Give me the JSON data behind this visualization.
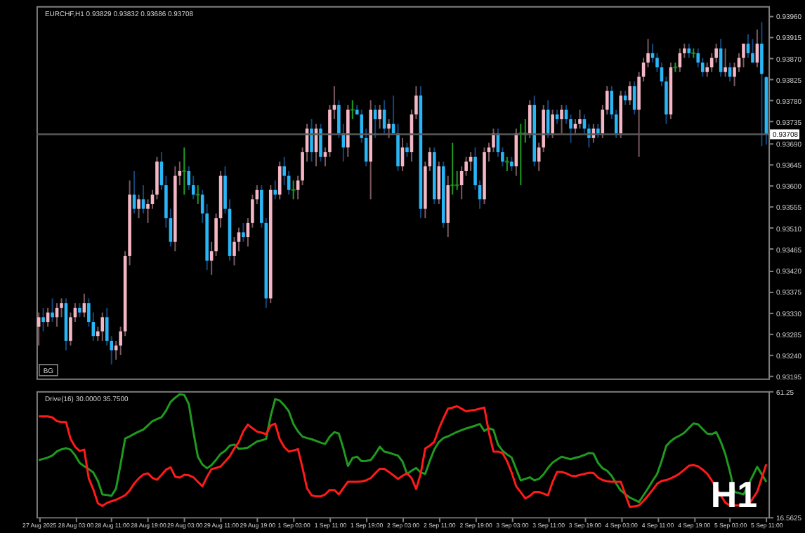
{
  "chart_data": [
    {
      "type": "candlestick",
      "title": "EURCHF,H1 0.93829 0.93832 0.93686 0.93708",
      "ylim": [
        0.9319,
        0.9398
      ],
      "yticks": [
        0.93195,
        {
          "value": 0.9324,
          "label": "0.93240"
        },
        0.93285,
        {
          "value": 0.9333,
          "label": "0.93330"
        },
        0.93375,
        {
          "value": 0.9342,
          "label": "0.93420"
        },
        0.93465,
        {
          "value": 0.9351,
          "label": "0.93510"
        },
        0.93555,
        {
          "value": 0.936,
          "label": "0.93600"
        },
        0.93645,
        {
          "value": 0.9369,
          "label": "0.93690"
        },
        0.93735,
        {
          "value": 0.9378,
          "label": "0.93780"
        },
        0.93825,
        {
          "value": 0.9387,
          "label": "0.93870"
        },
        0.93915,
        {
          "value": 0.9396,
          "label": "0.93960"
        }
      ],
      "tick_labels": "y",
      "ref_lines": [
        {
          "axis": "y",
          "value": 0.93708,
          "label": "0.93708"
        }
      ],
      "annotations": [
        "BG"
      ],
      "categories": [
        null,
        null,
        null,
        null,
        null,
        null,
        null,
        null,
        null,
        null,
        null,
        null,
        null,
        null,
        null,
        null,
        null,
        null,
        null,
        null,
        null,
        null,
        null,
        null,
        null,
        null,
        null,
        null,
        null,
        null,
        null,
        null,
        null,
        null,
        null,
        null,
        null,
        null,
        null,
        null,
        null,
        null,
        null,
        null,
        null,
        null,
        null,
        null,
        null,
        null,
        null,
        null,
        null,
        null,
        null,
        null,
        null,
        null,
        null,
        null,
        null,
        null,
        null,
        null,
        null,
        null,
        null,
        null,
        null,
        null,
        null,
        null,
        null,
        null,
        null,
        null,
        null,
        null,
        null,
        null,
        null,
        null,
        null,
        null,
        null,
        null,
        null,
        null,
        null,
        null,
        null,
        null,
        null,
        null,
        null,
        null,
        null,
        null,
        null,
        null,
        null,
        null,
        null,
        null,
        null,
        null,
        null,
        null,
        null,
        null,
        null,
        null,
        null,
        null,
        null,
        null,
        null,
        null,
        null,
        null,
        null,
        null,
        null,
        null,
        null,
        null,
        null,
        null,
        null,
        null,
        null,
        null,
        null,
        null,
        null,
        null,
        null,
        null,
        null,
        null,
        null,
        null,
        null,
        null,
        null,
        null,
        null,
        null,
        null,
        null,
        null,
        null,
        null,
        null,
        null,
        null,
        null,
        null,
        null,
        null,
        null
      ],
      "ohlc": [
        [
          0.933,
          0.9333,
          0.9326,
          0.9332
        ],
        [
          0.9332,
          0.9334,
          0.9329,
          0.9331
        ],
        [
          0.9331,
          0.9334,
          0.933,
          0.9333
        ],
        [
          0.9333,
          0.9336,
          0.9331,
          0.9332
        ],
        [
          0.9332,
          0.9335,
          0.933,
          0.9334
        ],
        [
          0.9334,
          0.9336,
          0.9332,
          0.9335
        ],
        [
          0.9335,
          0.9336,
          0.9325,
          0.9327
        ],
        [
          0.9327,
          0.9333,
          0.9326,
          0.9332
        ],
        [
          0.9332,
          0.9335,
          0.9331,
          0.9334
        ],
        [
          0.9334,
          0.9335,
          0.9332,
          0.9333
        ],
        [
          0.9333,
          0.9337,
          0.9332,
          0.9335
        ],
        [
          0.9335,
          0.9336,
          0.933,
          0.9331
        ],
        [
          0.9331,
          0.9333,
          0.9327,
          0.9328
        ],
        [
          0.9328,
          0.933,
          0.9327,
          0.9329
        ],
        [
          0.9329,
          0.9333,
          0.9327,
          0.9332
        ],
        [
          0.9332,
          0.9334,
          0.9326,
          0.9327
        ],
        [
          0.9327,
          0.9328,
          0.9322,
          0.9325
        ],
        [
          0.9325,
          0.9327,
          0.9323,
          0.9326
        ],
        [
          0.9326,
          0.933,
          0.9324,
          0.9329
        ],
        [
          0.9329,
          0.9346,
          0.9328,
          0.9345
        ],
        [
          0.9345,
          0.9361,
          0.9343,
          0.9358
        ],
        [
          0.9358,
          0.9363,
          0.9354,
          0.9355
        ],
        [
          0.9355,
          0.9358,
          0.9353,
          0.9357
        ],
        [
          0.9357,
          0.936,
          0.9354,
          0.9355
        ],
        [
          0.9355,
          0.9357,
          0.9352,
          0.9356
        ],
        [
          0.9356,
          0.9359,
          0.9355,
          0.9358
        ],
        [
          0.9358,
          0.9366,
          0.9357,
          0.9365
        ],
        [
          0.9365,
          0.9367,
          0.9359,
          0.936
        ],
        [
          0.936,
          0.9362,
          0.9351,
          0.9353
        ],
        [
          0.9353,
          0.9355,
          0.9347,
          0.9348
        ],
        [
          0.9348,
          0.9364,
          0.9346,
          0.9362
        ],
        [
          0.9362,
          0.9365,
          0.936,
          0.9363
        ],
        [
          0.9363,
          0.9368,
          0.9358,
          0.9363
        ],
        [
          0.9363,
          0.9364,
          0.9359,
          0.936
        ],
        [
          0.936,
          0.9362,
          0.9357,
          0.9358
        ],
        [
          0.9358,
          0.936,
          0.9356,
          0.9358
        ],
        [
          0.9358,
          0.9359,
          0.9352,
          0.9354
        ],
        [
          0.9354,
          0.9356,
          0.9342,
          0.9344
        ],
        [
          0.9344,
          0.9348,
          0.9341,
          0.9346
        ],
        [
          0.9346,
          0.9354,
          0.9345,
          0.9353
        ],
        [
          0.9353,
          0.9363,
          0.9351,
          0.9362
        ],
        [
          0.9362,
          0.9364,
          0.9354,
          0.9355
        ],
        [
          0.9355,
          0.9357,
          0.9344,
          0.9345
        ],
        [
          0.9345,
          0.9349,
          0.9343,
          0.9348
        ],
        [
          0.9348,
          0.9351,
          0.9346,
          0.935
        ],
        [
          0.935,
          0.9352,
          0.9348,
          0.9349
        ],
        [
          0.9349,
          0.9353,
          0.9347,
          0.9352
        ],
        [
          0.9352,
          0.9358,
          0.9351,
          0.9357
        ],
        [
          0.9357,
          0.936,
          0.9356,
          0.9359
        ],
        [
          0.9359,
          0.936,
          0.9351,
          0.9352
        ],
        [
          0.9352,
          0.9353,
          0.9334,
          0.9336
        ],
        [
          0.9336,
          0.936,
          0.9335,
          0.9359
        ],
        [
          0.9359,
          0.9361,
          0.9357,
          0.9358
        ],
        [
          0.9358,
          0.9365,
          0.9357,
          0.9364
        ],
        [
          0.9364,
          0.9366,
          0.936,
          0.9362
        ],
        [
          0.9362,
          0.9363,
          0.9358,
          0.9359
        ],
        [
          0.9359,
          0.9361,
          0.9357,
          0.9359
        ],
        [
          0.9359,
          0.9362,
          0.9357,
          0.9361
        ],
        [
          0.9361,
          0.9368,
          0.936,
          0.9367
        ],
        [
          0.9367,
          0.9373,
          0.9365,
          0.9372
        ],
        [
          0.9372,
          0.9374,
          0.9365,
          0.9367
        ],
        [
          0.9367,
          0.9373,
          0.9364,
          0.9372
        ],
        [
          0.9372,
          0.9373,
          0.9365,
          0.9366
        ],
        [
          0.9366,
          0.9368,
          0.9364,
          0.9367
        ],
        [
          0.9367,
          0.9377,
          0.9366,
          0.9376
        ],
        [
          0.9376,
          0.9381,
          0.9374,
          0.9377
        ],
        [
          0.9377,
          0.9378,
          0.937,
          0.9371
        ],
        [
          0.9371,
          0.9373,
          0.9365,
          0.9368
        ],
        [
          0.9368,
          0.9377,
          0.9366,
          0.9376
        ],
        [
          0.9376,
          0.9378,
          0.9374,
          0.9376
        ],
        [
          0.9376,
          0.9377,
          0.9375,
          0.9375
        ],
        [
          0.9375,
          0.9376,
          0.9369,
          0.937
        ],
        [
          0.937,
          0.9372,
          0.9364,
          0.9365
        ],
        [
          0.9365,
          0.9378,
          0.9357,
          0.9376
        ],
        [
          0.9376,
          0.9377,
          0.937,
          0.9374
        ],
        [
          0.9374,
          0.9377,
          0.9372,
          0.9376
        ],
        [
          0.9376,
          0.9378,
          0.9371,
          0.9372
        ],
        [
          0.9372,
          0.9374,
          0.937,
          0.9373
        ],
        [
          0.9373,
          0.9379,
          0.9371,
          0.9371
        ],
        [
          0.9371,
          0.9373,
          0.9363,
          0.9364
        ],
        [
          0.9364,
          0.937,
          0.9363,
          0.9368
        ],
        [
          0.9368,
          0.9369,
          0.9366,
          0.9367
        ],
        [
          0.9367,
          0.9376,
          0.9365,
          0.9375
        ],
        [
          0.9375,
          0.9381,
          0.9374,
          0.9379
        ],
        [
          0.9379,
          0.9381,
          0.9353,
          0.9355
        ],
        [
          0.9355,
          0.9365,
          0.9353,
          0.9364
        ],
        [
          0.9364,
          0.9368,
          0.9363,
          0.9367
        ],
        [
          0.9367,
          0.9368,
          0.9356,
          0.9357
        ],
        [
          0.9357,
          0.9365,
          0.9356,
          0.9364
        ],
        [
          0.9364,
          0.9365,
          0.9351,
          0.9352
        ],
        [
          0.9352,
          0.9362,
          0.9349,
          0.936
        ],
        [
          0.936,
          0.9369,
          0.9358,
          0.936
        ],
        [
          0.936,
          0.9363,
          0.9359,
          0.936
        ],
        [
          0.936,
          0.9364,
          0.9357,
          0.9363
        ],
        [
          0.9363,
          0.9366,
          0.9362,
          0.9365
        ],
        [
          0.9365,
          0.9367,
          0.9363,
          0.9366
        ],
        [
          0.9366,
          0.9368,
          0.9359,
          0.936
        ],
        [
          0.936,
          0.9361,
          0.9355,
          0.9357
        ],
        [
          0.9357,
          0.9368,
          0.9356,
          0.9367
        ],
        [
          0.9367,
          0.9369,
          0.9365,
          0.9368
        ],
        [
          0.9368,
          0.9372,
          0.9367,
          0.9371
        ],
        [
          0.9371,
          0.9372,
          0.9366,
          0.9367
        ],
        [
          0.9367,
          0.9368,
          0.9364,
          0.9365
        ],
        [
          0.9365,
          0.9366,
          0.9363,
          0.9365
        ],
        [
          0.9365,
          0.9366,
          0.9363,
          0.9364
        ],
        [
          0.9364,
          0.9372,
          0.9362,
          0.9371
        ],
        [
          0.9371,
          0.9373,
          0.936,
          0.9371
        ],
        [
          0.9371,
          0.9374,
          0.9369,
          0.9371
        ],
        [
          0.9371,
          0.9378,
          0.937,
          0.9377
        ],
        [
          0.9377,
          0.9379,
          0.9364,
          0.9365
        ],
        [
          0.9365,
          0.9369,
          0.9363,
          0.9368
        ],
        [
          0.9368,
          0.9377,
          0.9367,
          0.9376
        ],
        [
          0.9376,
          0.9378,
          0.937,
          0.9371
        ],
        [
          0.9371,
          0.9376,
          0.937,
          0.9375
        ],
        [
          0.9375,
          0.9376,
          0.9373,
          0.9374
        ],
        [
          0.9374,
          0.9377,
          0.9371,
          0.9376
        ],
        [
          0.9376,
          0.9377,
          0.9373,
          0.9374
        ],
        [
          0.9374,
          0.9375,
          0.9369,
          0.9372
        ],
        [
          0.9372,
          0.9374,
          0.9371,
          0.9373
        ],
        [
          0.9373,
          0.9376,
          0.9372,
          0.9374
        ],
        [
          0.9374,
          0.9375,
          0.9371,
          0.9372
        ],
        [
          0.9372,
          0.9373,
          0.9368,
          0.937
        ],
        [
          0.937,
          0.9373,
          0.9369,
          0.9372
        ],
        [
          0.9372,
          0.9373,
          0.937,
          0.9371
        ],
        [
          0.9371,
          0.9377,
          0.937,
          0.9376
        ],
        [
          0.9376,
          0.9381,
          0.9375,
          0.938
        ],
        [
          0.938,
          0.9381,
          0.9374,
          0.9375
        ],
        [
          0.9375,
          0.9376,
          0.937,
          0.9371
        ],
        [
          0.9371,
          0.938,
          0.937,
          0.9379
        ],
        [
          0.9379,
          0.938,
          0.9377,
          0.9378
        ],
        [
          0.9378,
          0.9382,
          0.9377,
          0.9381
        ],
        [
          0.9381,
          0.9382,
          0.9375,
          0.9376
        ],
        [
          0.9376,
          0.9384,
          0.9366,
          0.9383
        ],
        [
          0.9383,
          0.9387,
          0.9382,
          0.9386
        ],
        [
          0.9386,
          0.9391,
          0.9385,
          0.9388
        ],
        [
          0.9388,
          0.939,
          0.9386,
          0.9387
        ],
        [
          0.9387,
          0.9388,
          0.9384,
          0.9385
        ],
        [
          0.9385,
          0.9386,
          0.9381,
          0.9382
        ],
        [
          0.9382,
          0.9383,
          0.9373,
          0.9375
        ],
        [
          0.9375,
          0.9386,
          0.9374,
          0.9385
        ],
        [
          0.9385,
          0.9386,
          0.9384,
          0.9385
        ],
        [
          0.9385,
          0.9389,
          0.9384,
          0.9388
        ],
        [
          0.9388,
          0.939,
          0.9387,
          0.9389
        ],
        [
          0.9389,
          0.939,
          0.9387,
          0.9388
        ],
        [
          0.9388,
          0.9389,
          0.9387,
          0.9388
        ],
        [
          0.9388,
          0.9389,
          0.9385,
          0.9386
        ],
        [
          0.9386,
          0.9387,
          0.9383,
          0.9384
        ],
        [
          0.9384,
          0.9386,
          0.9383,
          0.9385
        ],
        [
          0.9385,
          0.9388,
          0.9384,
          0.9387
        ],
        [
          0.9387,
          0.939,
          0.9386,
          0.9389
        ],
        [
          0.9389,
          0.9391,
          0.9383,
          0.9384
        ],
        [
          0.9384,
          0.9389,
          0.9383,
          0.9385
        ],
        [
          0.9385,
          0.9386,
          0.9382,
          0.9383
        ],
        [
          0.9383,
          0.9386,
          0.9381,
          0.9385
        ],
        [
          0.9385,
          0.9388,
          0.9384,
          0.9387
        ],
        [
          0.9387,
          0.939,
          0.9385,
          0.939
        ],
        [
          0.939,
          0.9392,
          0.9387,
          0.9388
        ],
        [
          0.9388,
          0.9391,
          0.9386,
          0.9386
        ],
        [
          0.9386,
          0.9393,
          0.9385,
          0.939
        ],
        [
          0.939,
          0.93946,
          0.93683,
          0.93836
        ],
        [
          0.93829,
          0.93832,
          0.93686,
          0.93708
        ]
      ]
    },
    {
      "type": "line",
      "title": "Drive(16) 30.0000 35.7500",
      "ylim": [
        16.5625,
        61.25
      ],
      "yticks": [
        61.25,
        16.5625
      ],
      "categories": [
        "27 Aug 2025",
        null,
        null,
        null,
        null,
        null,
        null,
        null,
        "28 Aug 03:00",
        null,
        null,
        null,
        null,
        null,
        null,
        null,
        "28 Aug 11:00",
        null,
        null,
        null,
        null,
        null,
        null,
        null,
        "28 Aug 19:00",
        null,
        null,
        null,
        null,
        null,
        null,
        null,
        "29 Aug 03:00",
        null,
        null,
        null,
        null,
        null,
        null,
        null,
        "29 Aug 11:00",
        null,
        null,
        null,
        null,
        null,
        null,
        null,
        "29 Aug 19:00",
        null,
        null,
        null,
        null,
        null,
        null,
        null,
        "1 Sep 03:00",
        null,
        null,
        null,
        null,
        null,
        null,
        null,
        "1 Sep 11:00",
        null,
        null,
        null,
        null,
        null,
        null,
        null,
        "1 Sep 19:00",
        null,
        null,
        null,
        null,
        null,
        null,
        null,
        "2 Sep 03:00",
        null,
        null,
        null,
        null,
        null,
        null,
        null,
        "2 Sep 11:00",
        null,
        null,
        null,
        null,
        null,
        null,
        null,
        "2 Sep 19:00",
        null,
        null,
        null,
        null,
        null,
        null,
        null,
        "3 Sep 03:00",
        null,
        null,
        null,
        null,
        null,
        null,
        null,
        "3 Sep 11:00",
        null,
        null,
        null,
        null,
        null,
        null,
        null,
        "3 Sep 19:00",
        null,
        null,
        null,
        null,
        null,
        null,
        null,
        "4 Sep 03:00",
        null,
        null,
        null,
        null,
        null,
        null,
        null,
        "4 Sep 11:00",
        null,
        null,
        null,
        null,
        null,
        null,
        null,
        "4 Sep 19:00",
        null,
        null,
        null,
        null,
        null,
        null,
        null,
        "5 Sep 03:00",
        null,
        null,
        null,
        null,
        null,
        null,
        null,
        "5 Sep 11:00"
      ],
      "annotations": [
        "H1"
      ],
      "series": [
        {
          "color": "#1f9a1f",
          "values": [
            36.8,
            37.2,
            37.7,
            38.4,
            39.9,
            40.6,
            41.0,
            40.5,
            38.5,
            35.8,
            34.6,
            33.6,
            32.4,
            29.4,
            24.6,
            24.4,
            24.1,
            26.7,
            35.3,
            44.4,
            45.2,
            46.1,
            46.9,
            47.6,
            49.1,
            50.6,
            51.3,
            52.0,
            54.3,
            57.4,
            58.9,
            60.1,
            59.9,
            56.7,
            46.9,
            38.0,
            35.2,
            33.9,
            35.0,
            36.9,
            39.0,
            40.1,
            41.9,
            42.3,
            40.8,
            40.9,
            41.2,
            42.3,
            43.4,
            43.8,
            44.3,
            52.3,
            58.4,
            57.9,
            56.2,
            54.1,
            49.6,
            47.0,
            45.1,
            44.6,
            44.2,
            43.6,
            43.0,
            42.5,
            45.1,
            46.7,
            46.2,
            40.9,
            34.7,
            37.5,
            38.0,
            36.4,
            36.5,
            36.8,
            38.9,
            41.5,
            39.8,
            39.4,
            38.9,
            38.4,
            36.3,
            31.9,
            33.0,
            34.0,
            32.4,
            31.9,
            36.5,
            40.6,
            43.2,
            44.6,
            45.2,
            46.0,
            46.8,
            47.4,
            48.0,
            48.5,
            49.0,
            49.6,
            47.1,
            48.1,
            47.5,
            42.3,
            40.1,
            38.8,
            37.7,
            33.6,
            29.6,
            30.1,
            30.7,
            29.6,
            30.1,
            31.7,
            34.0,
            35.9,
            37.0,
            38.0,
            37.5,
            37.1,
            37.6,
            38.0,
            38.6,
            39.3,
            39.1,
            35.8,
            33.9,
            33.0,
            31.2,
            28.4,
            26.0,
            24.7,
            23.5,
            22.7,
            21.9,
            24.3,
            26.8,
            29.4,
            31.9,
            36.5,
            41.8,
            43.5,
            44.7,
            45.5,
            46.5,
            48.2,
            49.8,
            49.5,
            47.8,
            46.2,
            46.0,
            46.7,
            43.3,
            38.9,
            32.8,
            25.5,
            25.1,
            24.6,
            27.9,
            31.1,
            34.4,
            31.8,
            29.1
          ]
        },
        {
          "color": "#ff1a1a",
          "values": [
            52.3,
            52.3,
            52.3,
            51.9,
            50.6,
            50.3,
            50.3,
            44.3,
            41.5,
            40.0,
            40.5,
            30.3,
            26.4,
            21.5,
            20.5,
            21.6,
            22.2,
            22.7,
            23.5,
            24.3,
            26.0,
            28.5,
            30.3,
            31.7,
            32.1,
            30.5,
            29.8,
            31.5,
            33.4,
            34.2,
            30.9,
            30.6,
            31.6,
            31.4,
            30.7,
            29.1,
            27.5,
            30.8,
            33.6,
            34.0,
            34.5,
            36.3,
            38.1,
            40.9,
            43.2,
            47.0,
            49.4,
            48.1,
            46.9,
            46.5,
            46.0,
            49.0,
            49.7,
            44.2,
            41.4,
            39.8,
            40.2,
            40.7,
            34.1,
            26.8,
            24.3,
            23.9,
            23.9,
            24.6,
            26.2,
            26.2,
            24.6,
            26.9,
            29.1,
            29.1,
            29.1,
            29.2,
            29.6,
            30.4,
            32.1,
            33.7,
            33.7,
            32.6,
            31.4,
            30.1,
            31.2,
            32.1,
            30.4,
            26.5,
            31.9,
            40.9,
            41.9,
            43.3,
            47.9,
            51.6,
            55.0,
            55.4,
            55.9,
            55.0,
            54.1,
            54.4,
            54.6,
            55.0,
            55.4,
            46.6,
            39.8,
            39.8,
            39.3,
            36.4,
            32.4,
            27.5,
            25.4,
            23.2,
            24.1,
            25.5,
            25.5,
            24.9,
            24.3,
            29.0,
            32.6,
            32.6,
            32.1,
            31.3,
            31.1,
            31.5,
            31.9,
            32.3,
            32.2,
            30.6,
            29.7,
            29.3,
            29.1,
            29.1,
            29.1,
            24.6,
            20.2,
            20.4,
            20.7,
            22.3,
            24.2,
            26.2,
            28.4,
            29.4,
            29.7,
            30.3,
            31.1,
            32.1,
            33.4,
            34.8,
            35.0,
            34.6,
            33.4,
            32.0,
            29.6,
            26.9,
            24.3,
            21.7,
            20.7,
            20.7,
            20.7,
            20.7,
            20.7,
            23.1,
            25.5,
            30.4,
            35.3
          ]
        }
      ]
    }
  ]
}
